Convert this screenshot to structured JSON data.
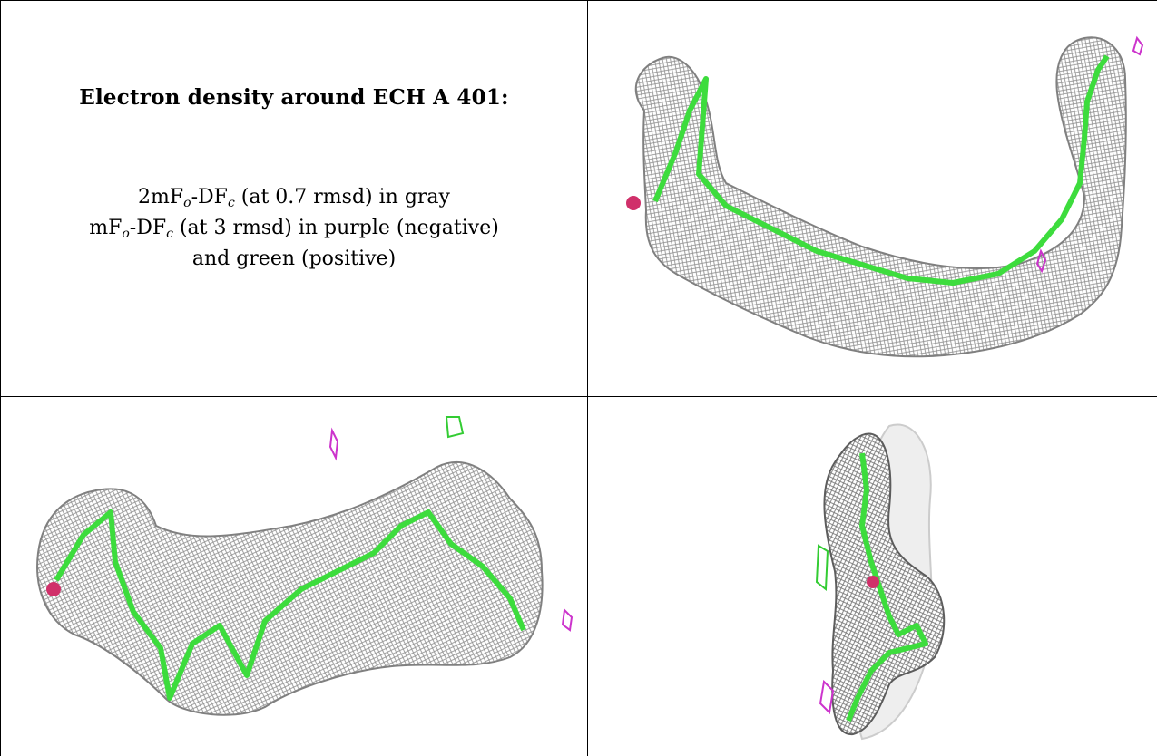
{
  "legend": {
    "title": "Electron density around ECH A 401:",
    "line1_prefix": "2mF",
    "line1_sub1": "o",
    "line1_mid": "-DF",
    "line1_sub2": "c",
    "line1_suffix": " (at 0.7 rmsd) in gray",
    "line2_prefix": "mF",
    "line2_sub1": "o",
    "line2_mid": "-DF",
    "line2_sub2": "c",
    "line2_suffix": " (at 3 rmsd) in purple (negative)",
    "line3": "and green (positive)"
  },
  "colors": {
    "mesh_gray": "#8a8a8a",
    "model_green": "#3ddc3d",
    "negative_purple": "#cc33cc",
    "positive_green": "#33cc33",
    "oxygen_red": "#d0306a"
  },
  "panels": [
    {
      "view": "top-right"
    },
    {
      "view": "bottom-left"
    },
    {
      "view": "bottom-right"
    }
  ]
}
